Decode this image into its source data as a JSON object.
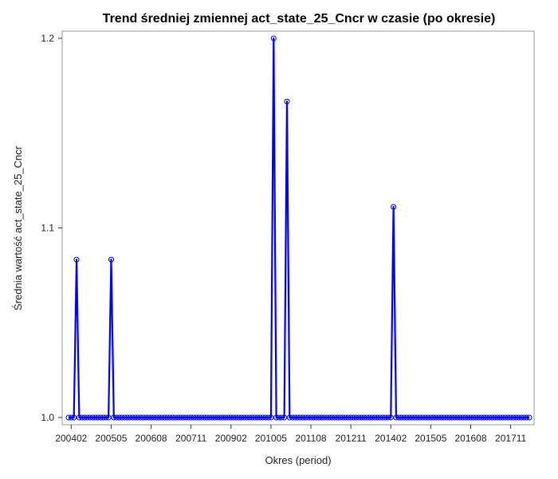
{
  "chart_data": {
    "type": "line",
    "title": "Trend średniej zmiennej act_state_25_Cncr w czasie (po okresie)",
    "xlabel": "Okres (period)",
    "ylabel": "Średnia wartość act_state_25_Cncr",
    "x_start": "200401",
    "x_end": "201806",
    "x_ticks": [
      "200402",
      "200505",
      "200608",
      "200711",
      "200902",
      "201005",
      "201108",
      "201211",
      "201402",
      "201505",
      "201608",
      "201711"
    ],
    "y_ticks": [
      "1.0",
      "1.1",
      "1.2"
    ],
    "ylim": [
      1.0,
      1.2
    ],
    "baseline_value": 1.0,
    "peaks": [
      {
        "period": "200404",
        "value": 1.0833
      },
      {
        "period": "200505",
        "value": 1.0833
      },
      {
        "period": "201006",
        "value": 1.2
      },
      {
        "period": "201011",
        "value": 1.1667
      },
      {
        "period": "201403",
        "value": 1.1111
      }
    ],
    "line_color": "#0000ff",
    "marker": "open-circle",
    "grid": false,
    "legend": "none"
  }
}
